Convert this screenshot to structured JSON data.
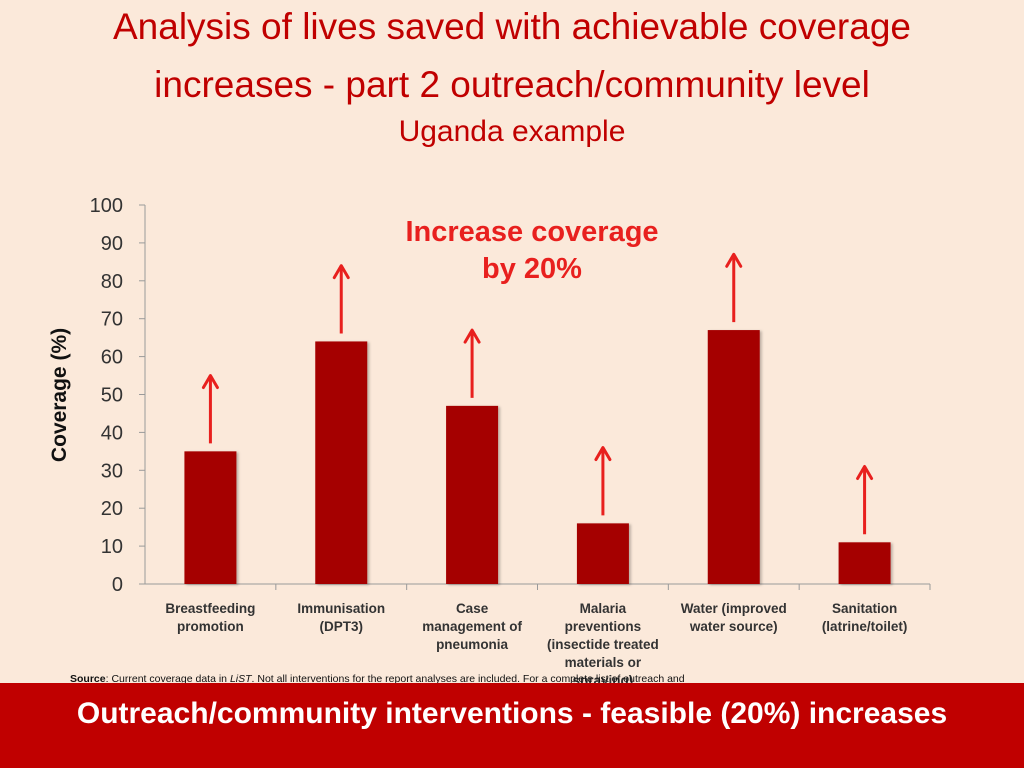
{
  "title": {
    "line1": "Analysis of lives saved with achievable coverage",
    "line2": "increases - part 2 outreach/community level",
    "subtitle": "Uganda example"
  },
  "chart_data": {
    "type": "bar",
    "categories": [
      [
        "Breastfeeding",
        "promotion"
      ],
      [
        "Immunisation",
        "(DPT3)"
      ],
      [
        "Case",
        "management of",
        "pneumonia"
      ],
      [
        "Malaria",
        "preventions",
        "(insectide treated",
        "materials or",
        "spraying)"
      ],
      [
        "Water (improved",
        "water source)"
      ],
      [
        "Sanitation",
        "(latrine/toilet)"
      ]
    ],
    "values": [
      35,
      64,
      47,
      16,
      67,
      11
    ],
    "ylabel": "Coverage  (%)",
    "ylim": [
      0,
      100
    ],
    "yticks": [
      0,
      10,
      20,
      30,
      40,
      50,
      60,
      70,
      80,
      90,
      100
    ],
    "annotation": [
      "Increase coverage",
      "by 20%"
    ],
    "bar_color": "#a50000",
    "arrow_color": "#e8201e"
  },
  "source": {
    "label": "Source",
    "text_pre": ": Current coverage data in ",
    "text_italic": "LiST",
    "text_post": ". Not all interventions for the report analyses are included. For a complete list of outreach and"
  },
  "footer": {
    "text": "Outreach/community interventions  - feasible (20%) increases",
    "color": "#c00000"
  }
}
